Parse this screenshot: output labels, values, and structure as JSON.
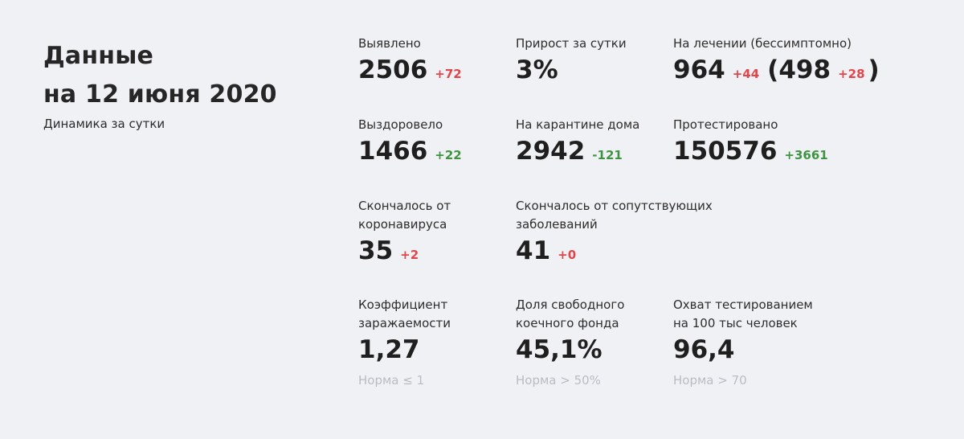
{
  "colors": {
    "background": "#f0f1f5",
    "negative": "#e0474c",
    "positive": "#3f9442",
    "muted": "#b9bcc3"
  },
  "header": {
    "title_line1": "Данные",
    "title_line2": "на 12 июня 2020",
    "subtitle": "Динамика за сутки"
  },
  "stats": {
    "detected": {
      "label": "Выявлено",
      "value": "2506",
      "delta": "+72"
    },
    "growth": {
      "label": "Прирост за сутки",
      "value": "3%"
    },
    "treatment": {
      "label": "На лечении (бессимптомно)",
      "value": "964",
      "delta": "+44",
      "asymptomatic_value": "498",
      "asymptomatic_delta": "+28",
      "open_paren": "(",
      "close_paren": ")"
    },
    "recovered": {
      "label": "Выздоровело",
      "value": "1466",
      "delta": "+22"
    },
    "home_quarantine": {
      "label": "На карантине дома",
      "value": "2942",
      "delta": "-121"
    },
    "tested": {
      "label": "Протестировано",
      "value": "150576",
      "delta": "+3661"
    },
    "died_covid": {
      "label_line1": "Скончалось от",
      "label_line2": "коронавируса",
      "value": "35",
      "delta": "+2"
    },
    "died_comorbid": {
      "label_line1": "Скончалось от сопутствующих",
      "label_line2": "заболеваний",
      "value": "41",
      "delta": "+0"
    },
    "infection_rate": {
      "label_line1": "Коэффициент",
      "label_line2": "заражаемости",
      "value": "1,27",
      "norm": "Норма ≤ 1"
    },
    "free_beds": {
      "label_line1": "Доля свободного",
      "label_line2": "коечного фонда",
      "value": "45,1%",
      "norm": "Норма > 50%"
    },
    "testing_coverage": {
      "label_line1": "Охват тестированием",
      "label_line2": "на 100 тыс человек",
      "value": "96,4",
      "norm": "Норма > 70"
    }
  }
}
